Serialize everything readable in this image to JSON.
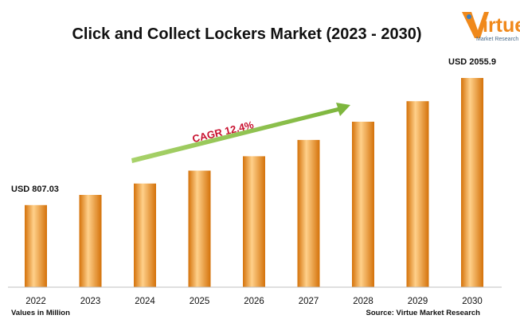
{
  "chart_data": {
    "type": "bar",
    "title": "Click and Collect Lockers Market (2023 - 2030)",
    "categories": [
      "2022",
      "2023",
      "2024",
      "2025",
      "2026",
      "2027",
      "2028",
      "2029",
      "2030"
    ],
    "values": [
      807.03,
      907,
      1019,
      1145,
      1287,
      1447,
      1626,
      1828,
      2055.9
    ],
    "data_labels": [
      {
        "index": 0,
        "text": "USD 807.03"
      },
      {
        "index": 8,
        "text": "USD 2055.9"
      }
    ],
    "annotations": [
      {
        "type": "arrow",
        "text": "CAGR 12.4%",
        "from_index": 2,
        "to_index": 6
      }
    ],
    "ylim": [
      0,
      2150
    ],
    "grid": false,
    "legend": "none",
    "colors": {
      "bar_light": "#ffd08a",
      "bar_mid": "#f7a232",
      "bar_dark": "#d4720a",
      "arrow": "#8dc34a",
      "cagr_text": "#c8102e"
    }
  },
  "footer": {
    "units_note": "Values in Million",
    "source": "Source: Virtue Market Research"
  },
  "logo": {
    "word": "irtue",
    "subtitle": "Market Research"
  }
}
